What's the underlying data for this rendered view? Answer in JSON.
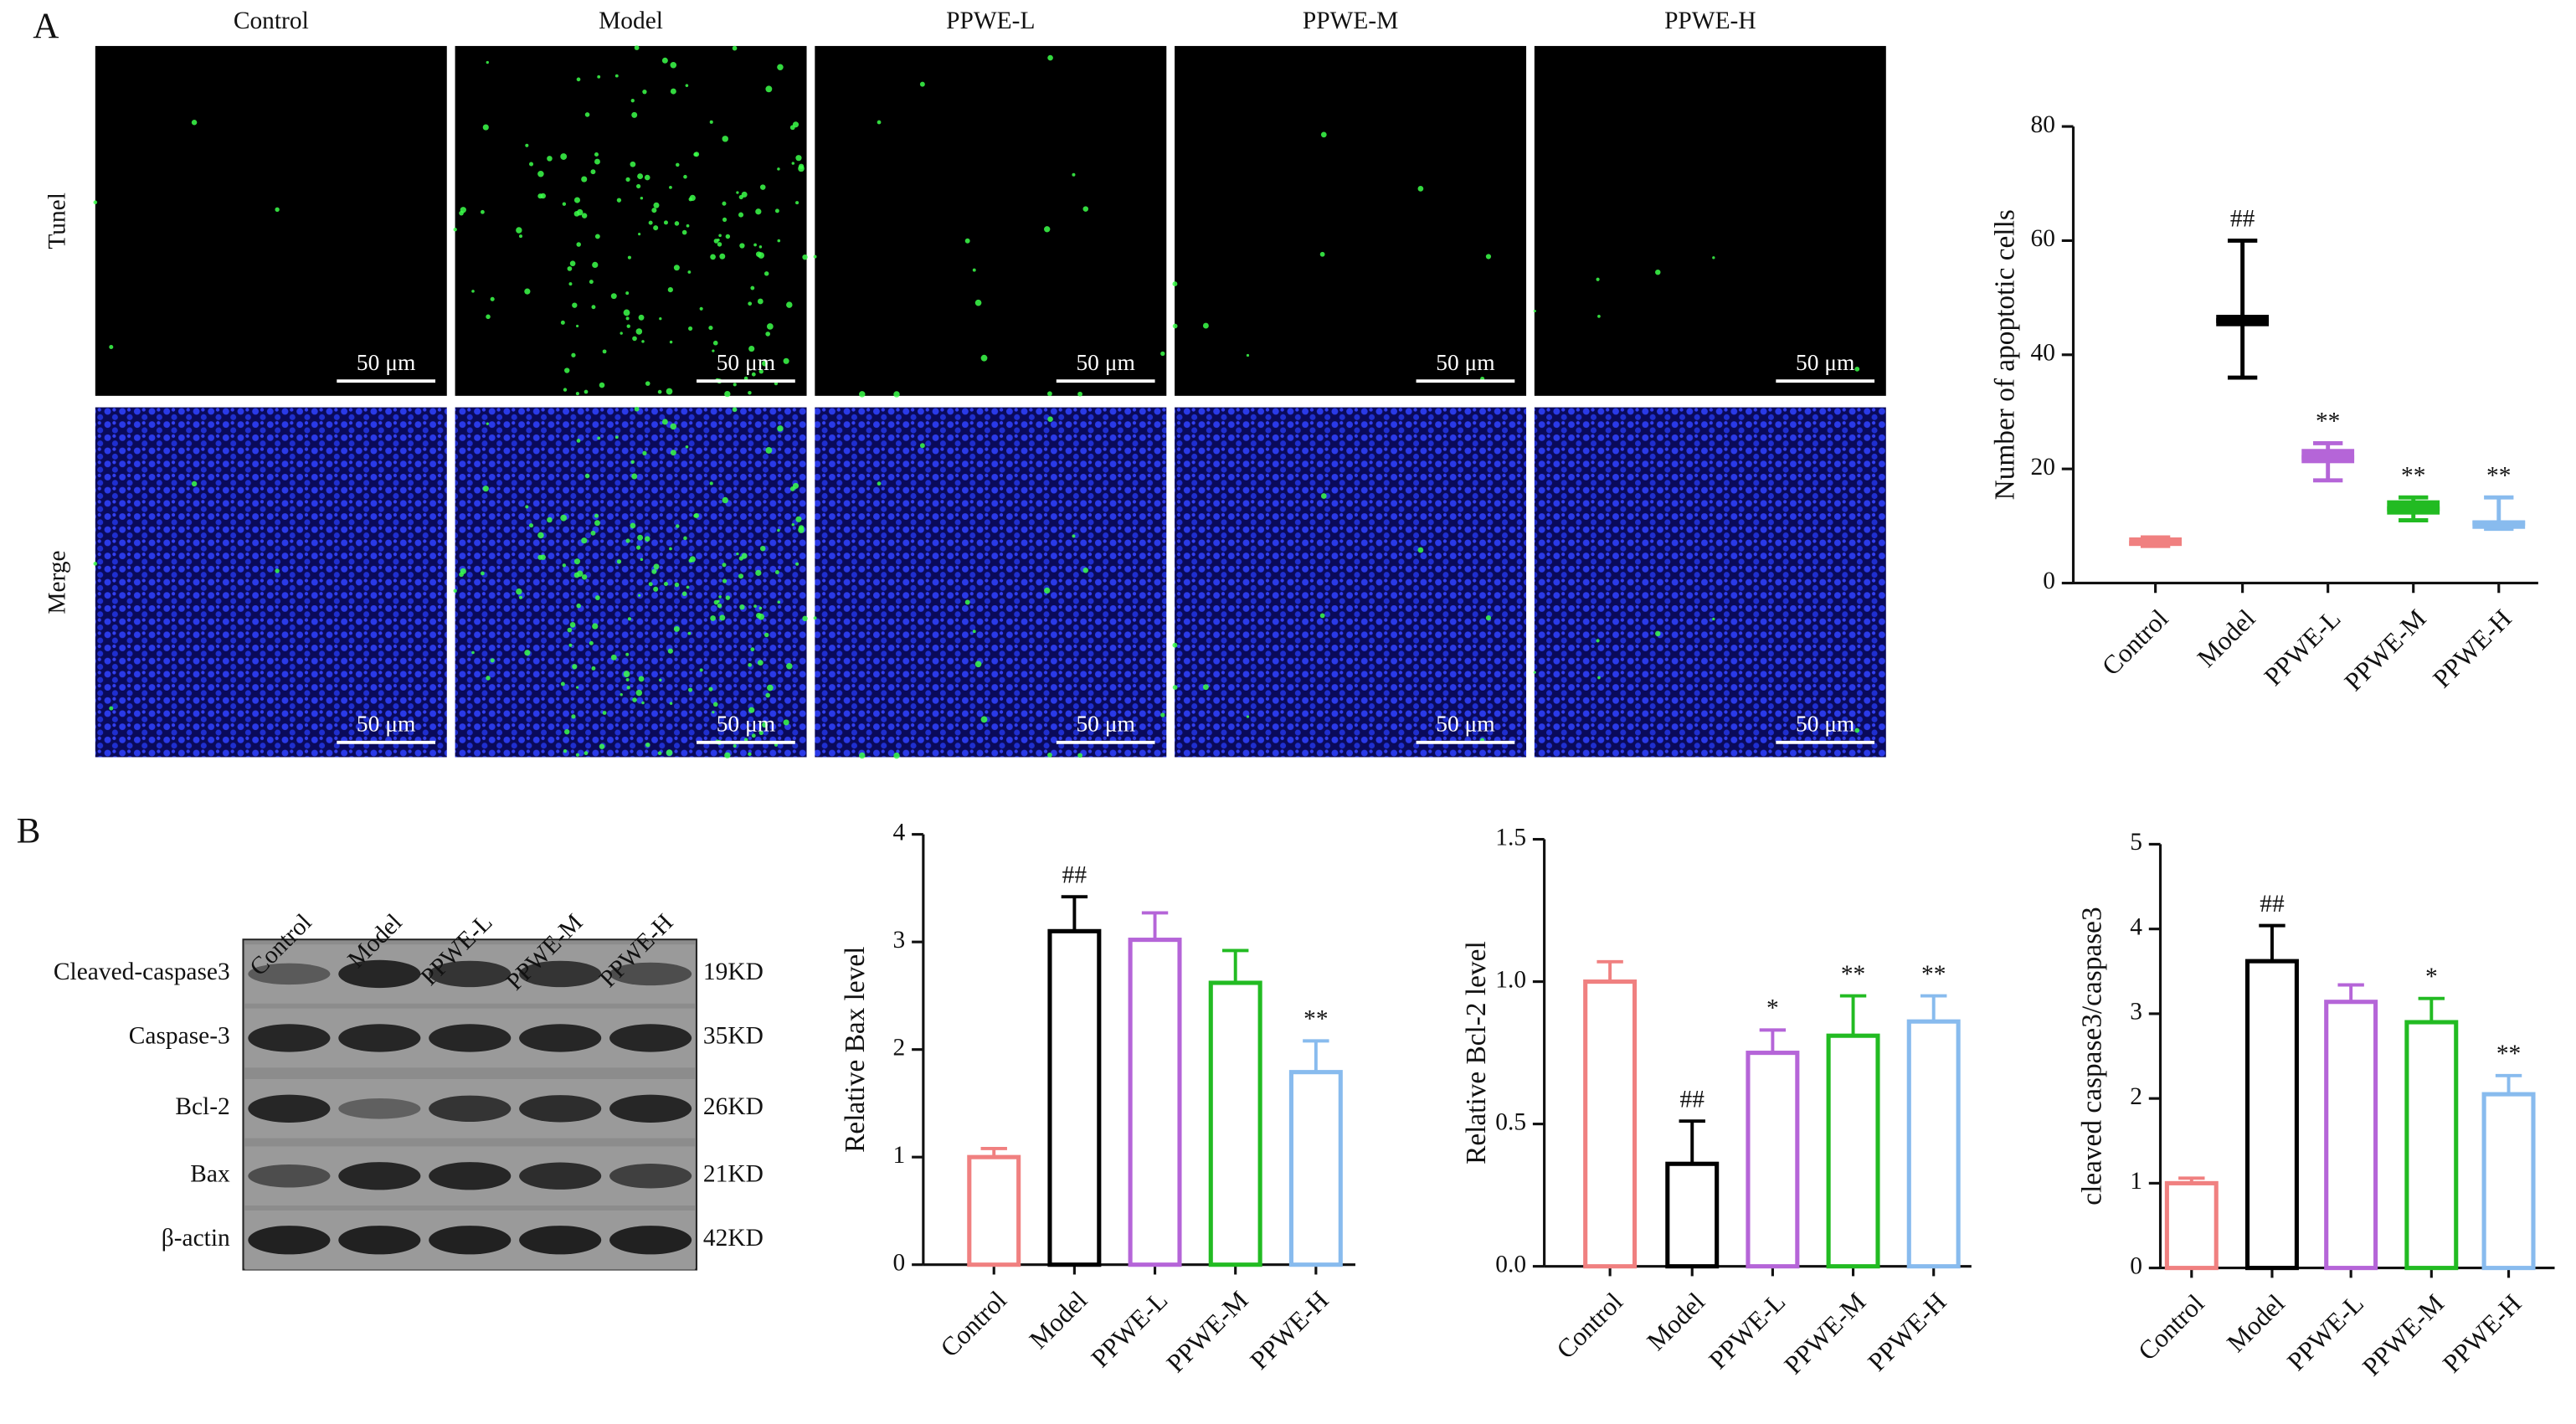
{
  "panel_a": {
    "label": "A",
    "columns": [
      "Control",
      "Model",
      "PPWE-L",
      "PPWE-M",
      "PPWE-H"
    ],
    "rows": [
      "Tunel",
      "Merge"
    ],
    "scale_bar": "50 μm"
  },
  "panel_b": {
    "label": "B",
    "blot_lanes": [
      "Control",
      "Model",
      "PPWE-L",
      "PPWE-M",
      "PPWE-H"
    ],
    "blot_rows": [
      "Cleaved-caspase3",
      "Caspase-3",
      "Bcl-2",
      "Bax",
      "β-actin"
    ],
    "blot_sizes": [
      "19KD",
      "35KD",
      "26KD",
      "21KD",
      "42KD"
    ]
  },
  "chart_data": [
    {
      "type": "box",
      "y_label": "Number of apoptotic cells",
      "categories": [
        "Control",
        "Model",
        "PPWE-L",
        "PPWE-M",
        "PPWE-H"
      ],
      "colors": [
        "#f08080",
        "#000000",
        "#b565d8",
        "#22bb22",
        "#88bbee"
      ],
      "boxes": [
        {
          "min": 6.5,
          "q1": 6.5,
          "median": 7,
          "q3": 8,
          "max": 8
        },
        {
          "min": 36,
          "q1": 45,
          "median": 46,
          "q3": 47,
          "max": 60
        },
        {
          "min": 18,
          "q1": 21,
          "median": 22,
          "q3": 23.5,
          "max": 24.5
        },
        {
          "min": 11,
          "q1": 12,
          "median": 13,
          "q3": 14.5,
          "max": 15
        },
        {
          "min": 9.5,
          "q1": 9.5,
          "median": 10.5,
          "q3": 11,
          "max": 15
        }
      ],
      "annotations": [
        null,
        "##",
        "**",
        "**",
        "**"
      ],
      "ylim": [
        0,
        80
      ],
      "yticks": [
        0,
        20,
        40,
        60,
        80
      ]
    },
    {
      "type": "bar",
      "y_label": "Relative Bax level",
      "categories": [
        "Control",
        "Model",
        "PPWE-L",
        "PPWE-M",
        "PPWE-H"
      ],
      "colors": [
        "#f08080",
        "#000000",
        "#b565d8",
        "#22bb22",
        "#88bbee"
      ],
      "values": [
        1.0,
        3.1,
        3.02,
        2.62,
        1.79
      ],
      "errors": [
        0.08,
        0.32,
        0.25,
        0.3,
        0.29
      ],
      "annotations": [
        null,
        "##",
        null,
        null,
        "**"
      ],
      "ylim": [
        0,
        4
      ],
      "yticks": [
        0,
        1,
        2,
        3,
        4
      ]
    },
    {
      "type": "bar",
      "y_label": "Relative Bcl-2 level",
      "categories": [
        "Control",
        "Model",
        "PPWE-L",
        "PPWE-M",
        "PPWE-H"
      ],
      "colors": [
        "#f08080",
        "#000000",
        "#b565d8",
        "#22bb22",
        "#88bbee"
      ],
      "values": [
        1.0,
        0.36,
        0.75,
        0.81,
        0.86
      ],
      "errors": [
        0.07,
        0.15,
        0.08,
        0.14,
        0.09
      ],
      "annotations": [
        null,
        "##",
        "*",
        "**",
        "**"
      ],
      "ylim": [
        0,
        1.5
      ],
      "yticks": [
        {
          "value": 0,
          "label": "0.0"
        },
        0.5,
        {
          "value": 1,
          "label": "1.0"
        },
        1.5
      ]
    },
    {
      "type": "bar",
      "y_label": "cleaved caspase3/caspase3",
      "categories": [
        "Control",
        "Model",
        "PPWE-L",
        "PPWE-M",
        "PPWE-H"
      ],
      "colors": [
        "#f08080",
        "#000000",
        "#b565d8",
        "#22bb22",
        "#88bbee"
      ],
      "values": [
        1.0,
        3.62,
        3.14,
        2.9,
        2.05
      ],
      "errors": [
        0.06,
        0.42,
        0.2,
        0.28,
        0.22
      ],
      "annotations": [
        null,
        "##",
        null,
        "*",
        "**"
      ],
      "ylim": [
        0,
        5
      ],
      "yticks": [
        0,
        1,
        2,
        3,
        4,
        5
      ]
    }
  ]
}
